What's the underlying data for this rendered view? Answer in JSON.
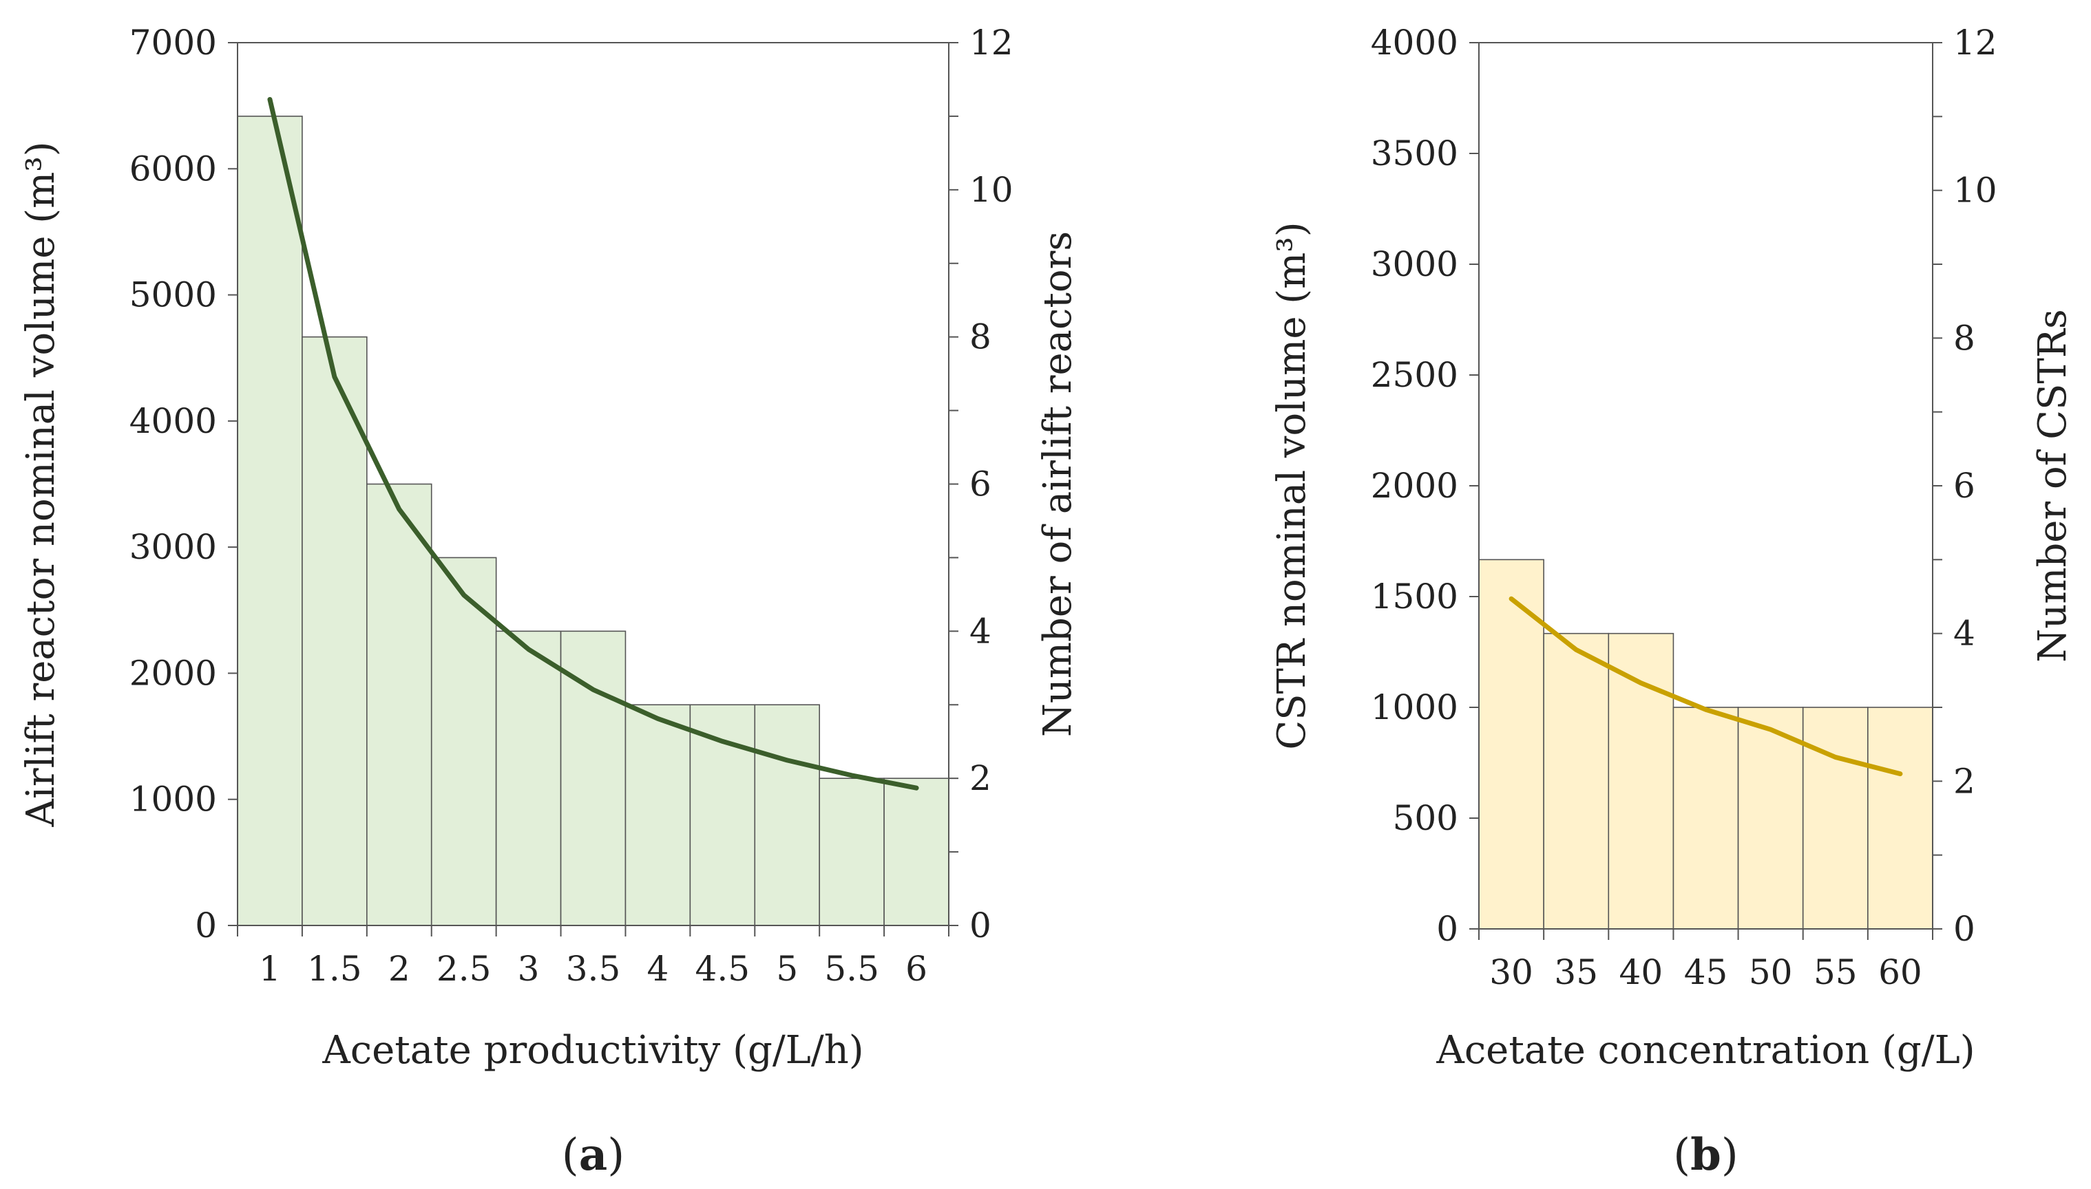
{
  "chart_data": [
    {
      "type": "bar",
      "panel_label": "a",
      "xlabel": "Acetate productivity (g/L/h)",
      "ylabel": "Airlift reactor nominal volume (m³)",
      "y2label": "Number of airlift reactors",
      "categories": [
        "1",
        "1.5",
        "2",
        "2.5",
        "3",
        "3.5",
        "4",
        "4.5",
        "5",
        "5.5",
        "6"
      ],
      "x": [
        1,
        1.5,
        2,
        2.5,
        3,
        3.5,
        4,
        4.5,
        5,
        5.5,
        6
      ],
      "y_ticks": [
        "0",
        "1000",
        "2000",
        "3000",
        "4000",
        "5000",
        "6000",
        "7000"
      ],
      "y2_ticks": [
        "0",
        "2",
        "4",
        "6",
        "8",
        "10",
        "12"
      ],
      "ylim": [
        0,
        7000
      ],
      "y2lim": [
        0,
        12
      ],
      "series": [
        {
          "name": "Number of airlift reactors",
          "type": "bar",
          "axis": "right",
          "color": "#e2efd9",
          "values": [
            11,
            8,
            6,
            5,
            4,
            4,
            3,
            3,
            3,
            2,
            2
          ]
        },
        {
          "name": "Airlift reactor nominal volume",
          "type": "line",
          "axis": "left",
          "color": "#3b5e2b",
          "values": [
            6550,
            4350,
            3300,
            2620,
            2190,
            1870,
            1640,
            1460,
            1310,
            1190,
            1090
          ]
        }
      ]
    },
    {
      "type": "bar",
      "panel_label": "b",
      "xlabel": "Acetate concentration (g/L)",
      "ylabel": "CSTR nominal volume (m³)",
      "y2label": "Number of CSTRs",
      "categories": [
        "30",
        "35",
        "40",
        "45",
        "50",
        "55",
        "60"
      ],
      "x": [
        30,
        35,
        40,
        45,
        50,
        55,
        60
      ],
      "y_ticks": [
        "0",
        "500",
        "1000",
        "1500",
        "2000",
        "2500",
        "3000",
        "3500",
        "4000"
      ],
      "y2_ticks": [
        "0",
        "2",
        "4",
        "6",
        "8",
        "10",
        "12"
      ],
      "ylim": [
        0,
        4000
      ],
      "y2lim": [
        0,
        12
      ],
      "series": [
        {
          "name": "Number of CSTRs",
          "type": "bar",
          "axis": "right",
          "color": "#fff2cc",
          "values": [
            5,
            4,
            4,
            3,
            3,
            3,
            3
          ]
        },
        {
          "name": "CSTR nominal volume",
          "type": "line",
          "axis": "left",
          "color": "#c9a100",
          "values": [
            1490,
            1260,
            1110,
            990,
            900,
            775,
            700
          ]
        }
      ]
    }
  ]
}
